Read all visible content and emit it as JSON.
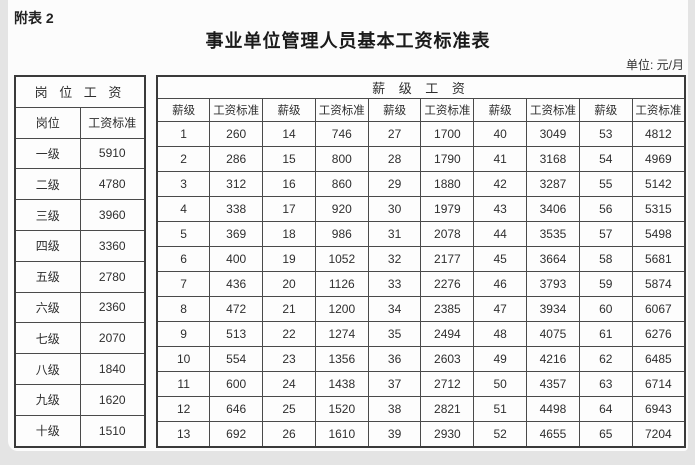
{
  "page": {
    "annex_label": "附表 2",
    "title": "事业单位管理人员基本工资标准表",
    "unit_note": "单位: 元/月"
  },
  "position_table": {
    "header": "岗 位 工 资",
    "col_headers": [
      "岗位",
      "工资标准"
    ],
    "rows": [
      [
        "一级",
        "5910"
      ],
      [
        "二级",
        "4780"
      ],
      [
        "三级",
        "3960"
      ],
      [
        "四级",
        "3360"
      ],
      [
        "五级",
        "2780"
      ],
      [
        "六级",
        "2360"
      ],
      [
        "七级",
        "2070"
      ],
      [
        "八级",
        "1840"
      ],
      [
        "九级",
        "1620"
      ],
      [
        "十级",
        "1510"
      ]
    ]
  },
  "grade_table": {
    "header": "薪 级 工 资",
    "pair_headers": [
      "薪级",
      "工资标准"
    ],
    "pairs": 5,
    "rows": [
      [
        "1",
        "260",
        "14",
        "746",
        "27",
        "1700",
        "40",
        "3049",
        "53",
        "4812"
      ],
      [
        "2",
        "286",
        "15",
        "800",
        "28",
        "1790",
        "41",
        "3168",
        "54",
        "4969"
      ],
      [
        "3",
        "312",
        "16",
        "860",
        "29",
        "1880",
        "42",
        "3287",
        "55",
        "5142"
      ],
      [
        "4",
        "338",
        "17",
        "920",
        "30",
        "1979",
        "43",
        "3406",
        "56",
        "5315"
      ],
      [
        "5",
        "369",
        "18",
        "986",
        "31",
        "2078",
        "44",
        "3535",
        "57",
        "5498"
      ],
      [
        "6",
        "400",
        "19",
        "1052",
        "32",
        "2177",
        "45",
        "3664",
        "58",
        "5681"
      ],
      [
        "7",
        "436",
        "20",
        "1126",
        "33",
        "2276",
        "46",
        "3793",
        "59",
        "5874"
      ],
      [
        "8",
        "472",
        "21",
        "1200",
        "34",
        "2385",
        "47",
        "3934",
        "60",
        "6067"
      ],
      [
        "9",
        "513",
        "22",
        "1274",
        "35",
        "2494",
        "48",
        "4075",
        "61",
        "6276"
      ],
      [
        "10",
        "554",
        "23",
        "1356",
        "36",
        "2603",
        "49",
        "4216",
        "62",
        "6485"
      ],
      [
        "11",
        "600",
        "24",
        "1438",
        "37",
        "2712",
        "50",
        "4357",
        "63",
        "6714"
      ],
      [
        "12",
        "646",
        "25",
        "1520",
        "38",
        "2821",
        "51",
        "4498",
        "64",
        "6943"
      ],
      [
        "13",
        "692",
        "26",
        "1610",
        "39",
        "2930",
        "52",
        "4655",
        "65",
        "7204"
      ]
    ]
  }
}
